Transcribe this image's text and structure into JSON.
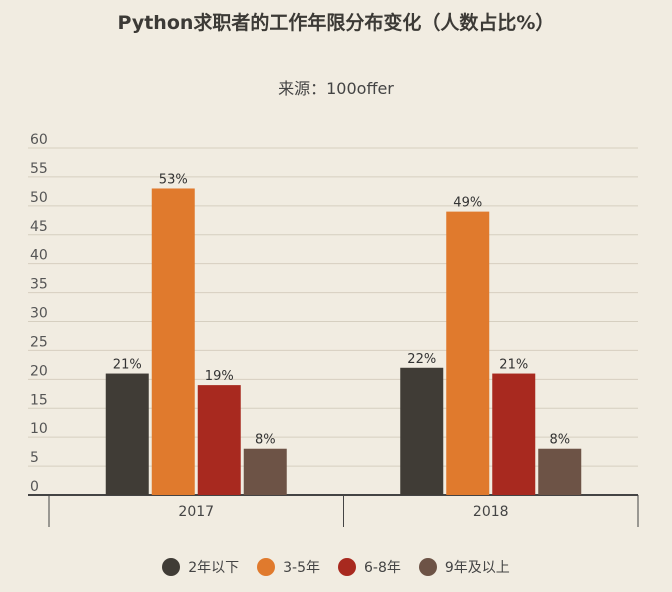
{
  "chart_data": {
    "type": "bar",
    "title": "Python求职者的工作年限分布变化（人数占比%）",
    "subtitle": "来源：100offer",
    "categories": [
      "2017",
      "2018"
    ],
    "series": [
      {
        "name": "2年以下",
        "values": [
          21,
          22
        ],
        "labels": [
          "21%",
          "22%"
        ],
        "color": "#403c36"
      },
      {
        "name": "3-5年",
        "values": [
          53,
          49
        ],
        "labels": [
          "53%",
          "49%"
        ],
        "color": "#e07a2d"
      },
      {
        "name": "6-8年",
        "values": [
          19,
          21
        ],
        "labels": [
          "19%",
          "21%"
        ],
        "color": "#a8291f"
      },
      {
        "name": "9年及以上",
        "values": [
          8,
          8
        ],
        "labels": [
          "8%",
          "8%"
        ],
        "color": "#6d5346"
      }
    ],
    "yticks": [
      "0",
      "5",
      "10",
      "15",
      "20",
      "25",
      "30",
      "35",
      "40",
      "45",
      "50",
      "55",
      "60"
    ],
    "ylim": [
      0,
      60
    ],
    "grid": true,
    "legend": "bottom"
  }
}
